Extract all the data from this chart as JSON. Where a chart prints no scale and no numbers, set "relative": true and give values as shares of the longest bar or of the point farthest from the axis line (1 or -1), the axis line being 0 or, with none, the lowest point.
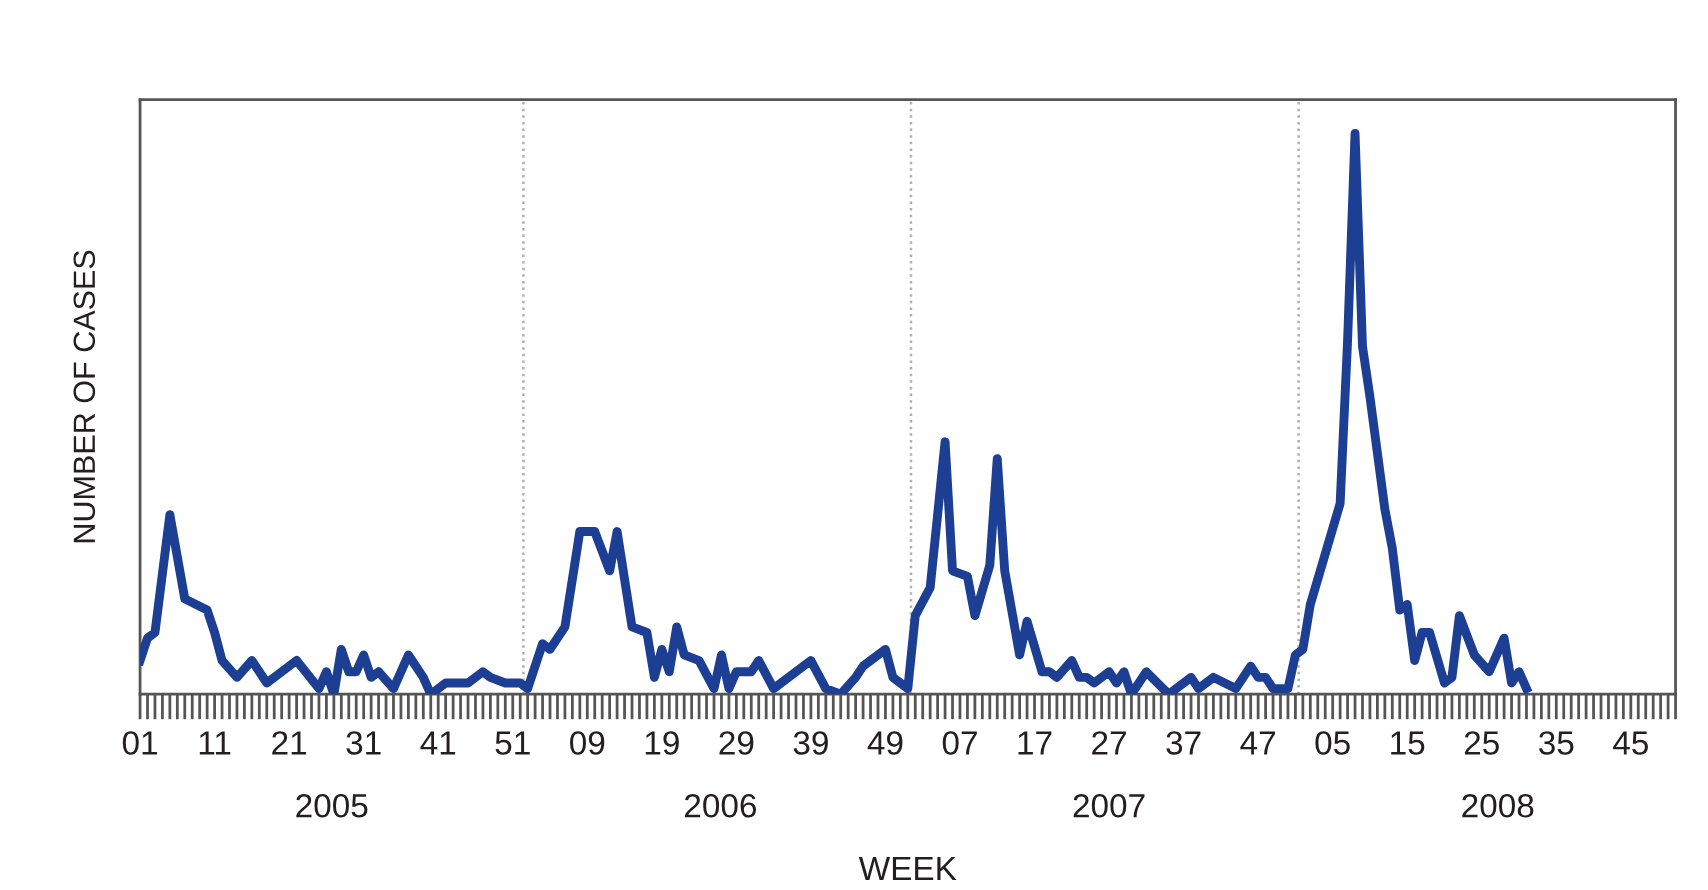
{
  "chart_data": {
    "type": "line",
    "relative": true,
    "xlabel": "WEEK",
    "ylabel": "NUMBER OF CASES",
    "tick_labels": "x",
    "x": [
      "2005-01-03",
      "2005-01-10",
      "2005-01-17",
      "2005-01-31",
      "2005-02-14",
      "2005-03-07",
      "2005-03-14",
      "2005-03-21",
      "2005-04-04",
      "2005-04-18",
      "2005-05-02",
      "2005-05-30",
      "2005-06-20",
      "2005-06-27",
      "2005-07-04",
      "2005-07-11",
      "2005-07-18",
      "2005-07-25",
      "2005-08-01",
      "2005-08-08",
      "2005-08-15",
      "2005-08-29",
      "2005-09-12",
      "2005-09-26",
      "2005-10-03",
      "2005-10-17",
      "2005-11-07",
      "2005-11-21",
      "2005-11-28",
      "2005-12-12",
      "2005-12-26",
      "2006-01-02",
      "2006-01-16",
      "2006-01-23",
      "2006-02-06",
      "2006-02-20",
      "2006-03-06",
      "2006-03-20",
      "2006-03-27",
      "2006-04-10",
      "2006-04-24",
      "2006-05-01",
      "2006-05-08",
      "2006-05-15",
      "2006-05-22",
      "2006-05-29",
      "2006-06-12",
      "2006-06-26",
      "2006-07-03",
      "2006-07-10",
      "2006-07-17",
      "2006-07-31",
      "2006-08-07",
      "2006-08-21",
      "2006-09-25",
      "2006-10-09",
      "2006-10-23",
      "2006-11-06",
      "2006-11-13",
      "2006-12-04",
      "2006-12-11",
      "2006-12-25",
      "2007-01-01",
      "2007-01-15",
      "2007-01-29",
      "2007-02-05",
      "2007-02-19",
      "2007-02-26",
      "2007-03-12",
      "2007-03-19",
      "2007-03-26",
      "2007-04-09",
      "2007-04-16",
      "2007-04-30",
      "2007-05-07",
      "2007-05-14",
      "2007-05-28",
      "2007-06-04",
      "2007-06-11",
      "2007-06-18",
      "2007-07-02",
      "2007-07-09",
      "2007-07-16",
      "2007-07-23",
      "2007-08-06",
      "2007-08-27",
      "2007-09-17",
      "2007-09-24",
      "2007-10-08",
      "2007-10-29",
      "2007-11-12",
      "2007-11-19",
      "2007-11-26",
      "2007-12-03",
      "2007-12-17",
      "2007-12-24",
      "2007-12-31",
      "2008-01-07",
      "2008-02-04",
      "2008-02-11",
      "2008-02-18",
      "2008-02-25",
      "2008-03-03",
      "2008-03-10",
      "2008-03-17",
      "2008-03-24",
      "2008-03-31",
      "2008-04-07",
      "2008-04-14",
      "2008-04-21",
      "2008-04-28",
      "2008-05-12",
      "2008-05-19",
      "2008-05-26",
      "2008-06-09",
      "2008-06-23",
      "2008-07-07",
      "2008-07-14",
      "2008-07-21",
      "2008-07-28"
    ],
    "series": [
      {
        "color": "#1c3f94",
        "values": [
          0.06,
          0.1,
          0.11,
          0.32,
          0.17,
          0.15,
          0.11,
          0.06,
          0.03,
          0.06,
          0.02,
          0.06,
          0.01,
          0.04,
          0.0,
          0.08,
          0.04,
          0.04,
          0.07,
          0.03,
          0.04,
          0.01,
          0.07,
          0.03,
          0.0,
          0.02,
          0.02,
          0.04,
          0.03,
          0.02,
          0.02,
          0.01,
          0.09,
          0.08,
          0.12,
          0.29,
          0.29,
          0.22,
          0.29,
          0.12,
          0.11,
          0.03,
          0.08,
          0.04,
          0.12,
          0.07,
          0.06,
          0.01,
          0.07,
          0.01,
          0.04,
          0.04,
          0.06,
          0.01,
          0.06,
          0.01,
          0.0,
          0.03,
          0.05,
          0.08,
          0.03,
          0.01,
          0.14,
          0.19,
          0.45,
          0.22,
          0.21,
          0.14,
          0.23,
          0.42,
          0.22,
          0.07,
          0.13,
          0.04,
          0.04,
          0.03,
          0.06,
          0.03,
          0.03,
          0.02,
          0.04,
          0.02,
          0.04,
          0.0,
          0.04,
          0.0,
          0.03,
          0.01,
          0.03,
          0.01,
          0.05,
          0.03,
          0.03,
          0.01,
          0.01,
          0.07,
          0.08,
          0.16,
          0.34,
          0.63,
          1.0,
          0.62,
          0.53,
          0.43,
          0.33,
          0.26,
          0.15,
          0.16,
          0.06,
          0.11,
          0.11,
          0.02,
          0.03,
          0.14,
          0.07,
          0.04,
          0.1,
          0.02,
          0.04,
          0.01
        ]
      }
    ],
    "xlim": [
      "2005-01-03",
      "2008-12-15"
    ],
    "xticks": [
      {
        "value": "2005-01-03",
        "label": "01"
      },
      {
        "value": "2005-03-14",
        "label": "11"
      },
      {
        "value": "2005-05-23",
        "label": "21"
      },
      {
        "value": "2005-08-01",
        "label": "31"
      },
      {
        "value": "2005-10-10",
        "label": "41"
      },
      {
        "value": "2005-12-19",
        "label": "51"
      },
      {
        "value": "2006-02-27",
        "label": "09"
      },
      {
        "value": "2006-05-08",
        "label": "19"
      },
      {
        "value": "2006-07-17",
        "label": "29"
      },
      {
        "value": "2006-09-25",
        "label": "39"
      },
      {
        "value": "2006-12-04",
        "label": "49"
      },
      {
        "value": "2007-02-12",
        "label": "07"
      },
      {
        "value": "2007-04-23",
        "label": "17"
      },
      {
        "value": "2007-07-02",
        "label": "27"
      },
      {
        "value": "2007-09-10",
        "label": "37"
      },
      {
        "value": "2007-11-19",
        "label": "47"
      },
      {
        "value": "2008-01-28",
        "label": "05"
      },
      {
        "value": "2008-04-07",
        "label": "15"
      },
      {
        "value": "2008-06-16",
        "label": "25"
      },
      {
        "value": "2008-08-25",
        "label": "35"
      },
      {
        "value": "2008-11-03",
        "label": "45"
      }
    ],
    "x2lim": [
      "2005-01-03",
      "2008-12-15"
    ],
    "x2ticks": [
      {
        "value": "2005-07-02",
        "label": "2005"
      },
      {
        "value": "2006-07-02",
        "label": "2006"
      },
      {
        "value": "2007-07-02",
        "label": "2007"
      },
      {
        "value": "2008-07-01",
        "label": "2008"
      }
    ],
    "ref_lines": [
      {
        "axis": "x",
        "value": "2005-12-29",
        "color": "#b0b0b0",
        "line_style": "dotted"
      },
      {
        "axis": "x",
        "value": "2006-12-28",
        "color": "#b0b0b0",
        "line_style": "dotted"
      },
      {
        "axis": "x",
        "value": "2007-12-27",
        "color": "#b0b0b0",
        "line_style": "dotted"
      }
    ]
  }
}
